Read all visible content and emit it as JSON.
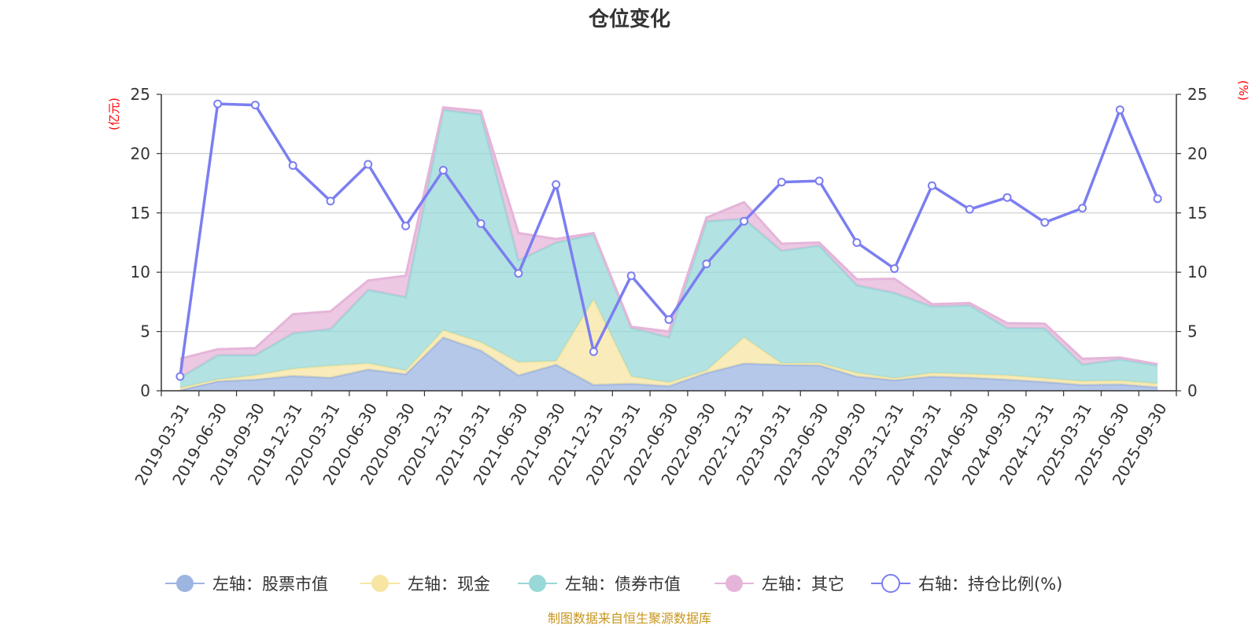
{
  "chart_data": {
    "type": "area",
    "title": "仓位变化",
    "left_unit": "(亿元)",
    "right_unit": "(%)",
    "left_ylim": [
      0,
      25
    ],
    "right_ylim": [
      0,
      25
    ],
    "y_ticks": [
      "0",
      "5",
      "10",
      "15",
      "20",
      "25"
    ],
    "categories": [
      "2019-03-31",
      "2019-06-30",
      "2019-09-30",
      "2019-12-31",
      "2020-03-31",
      "2020-06-30",
      "2020-09-30",
      "2020-12-31",
      "2021-03-31",
      "2021-06-30",
      "2021-09-30",
      "2021-12-31",
      "2022-03-31",
      "2022-06-30",
      "2022-09-30",
      "2022-12-31",
      "2023-03-31",
      "2023-06-30",
      "2023-09-30",
      "2023-12-31",
      "2024-03-31",
      "2024-06-30",
      "2024-09-30",
      "2024-12-31",
      "2025-03-31",
      "2025-06-30",
      "2025-09-30"
    ],
    "stacked_series": [
      {
        "name": "左轴：股票市值",
        "axis": "left",
        "color": "#9db5e1",
        "values": [
          0.05,
          0.8,
          0.95,
          1.25,
          1.1,
          1.8,
          1.4,
          4.5,
          3.4,
          1.3,
          2.2,
          0.5,
          0.6,
          0.4,
          1.5,
          2.3,
          2.2,
          2.15,
          1.2,
          0.9,
          1.2,
          1.1,
          0.95,
          0.75,
          0.5,
          0.55,
          0.3
        ]
      },
      {
        "name": "左轴：现金",
        "axis": "left",
        "color": "#f7e6a3",
        "values": [
          0.2,
          0.15,
          0.35,
          0.6,
          1.0,
          0.5,
          0.3,
          0.6,
          0.7,
          1.1,
          0.3,
          7.2,
          0.6,
          0.3,
          0.2,
          2.2,
          0.1,
          0.2,
          0.3,
          0.15,
          0.3,
          0.3,
          0.35,
          0.3,
          0.3,
          0.3,
          0.3
        ]
      },
      {
        "name": "左轴：债券市值",
        "axis": "left",
        "color": "#98d8d8",
        "values": [
          0.85,
          2.05,
          1.7,
          3.0,
          3.1,
          6.2,
          6.2,
          18.6,
          19.2,
          8.6,
          10.0,
          5.5,
          4.1,
          3.8,
          12.6,
          10.0,
          9.5,
          9.9,
          7.4,
          7.2,
          5.6,
          5.8,
          4.0,
          4.2,
          1.4,
          1.8,
          1.55
        ]
      },
      {
        "name": "左轴：其它",
        "axis": "left",
        "color": "#e5b5d9",
        "values": [
          1.6,
          0.5,
          0.6,
          1.6,
          1.5,
          0.8,
          1.8,
          0.2,
          0.3,
          2.3,
          0.3,
          0.1,
          0.1,
          0.5,
          0.3,
          1.4,
          0.6,
          0.25,
          0.5,
          1.2,
          0.2,
          0.2,
          0.4,
          0.4,
          0.5,
          0.15,
          0.1
        ]
      }
    ],
    "line_series": {
      "name": "右轴：持仓比例(%)",
      "axis": "right",
      "color": "#7b7ef0",
      "values": [
        1.2,
        24.2,
        24.1,
        19.0,
        16.0,
        19.1,
        13.9,
        18.6,
        14.1,
        9.9,
        17.4,
        3.3,
        9.7,
        6.0,
        10.7,
        14.3,
        17.6,
        17.7,
        12.5,
        10.3,
        17.3,
        15.3,
        16.3,
        14.2,
        15.4,
        23.7,
        16.2
      ]
    },
    "legend": [
      "左轴：股票市值",
      "左轴：现金",
      "左轴：债券市值",
      "左轴：其它",
      "右轴：持仓比例(%)"
    ],
    "legend_position": "bottom-center",
    "grid": true
  },
  "source_note": "制图数据来自恒生聚源数据库"
}
